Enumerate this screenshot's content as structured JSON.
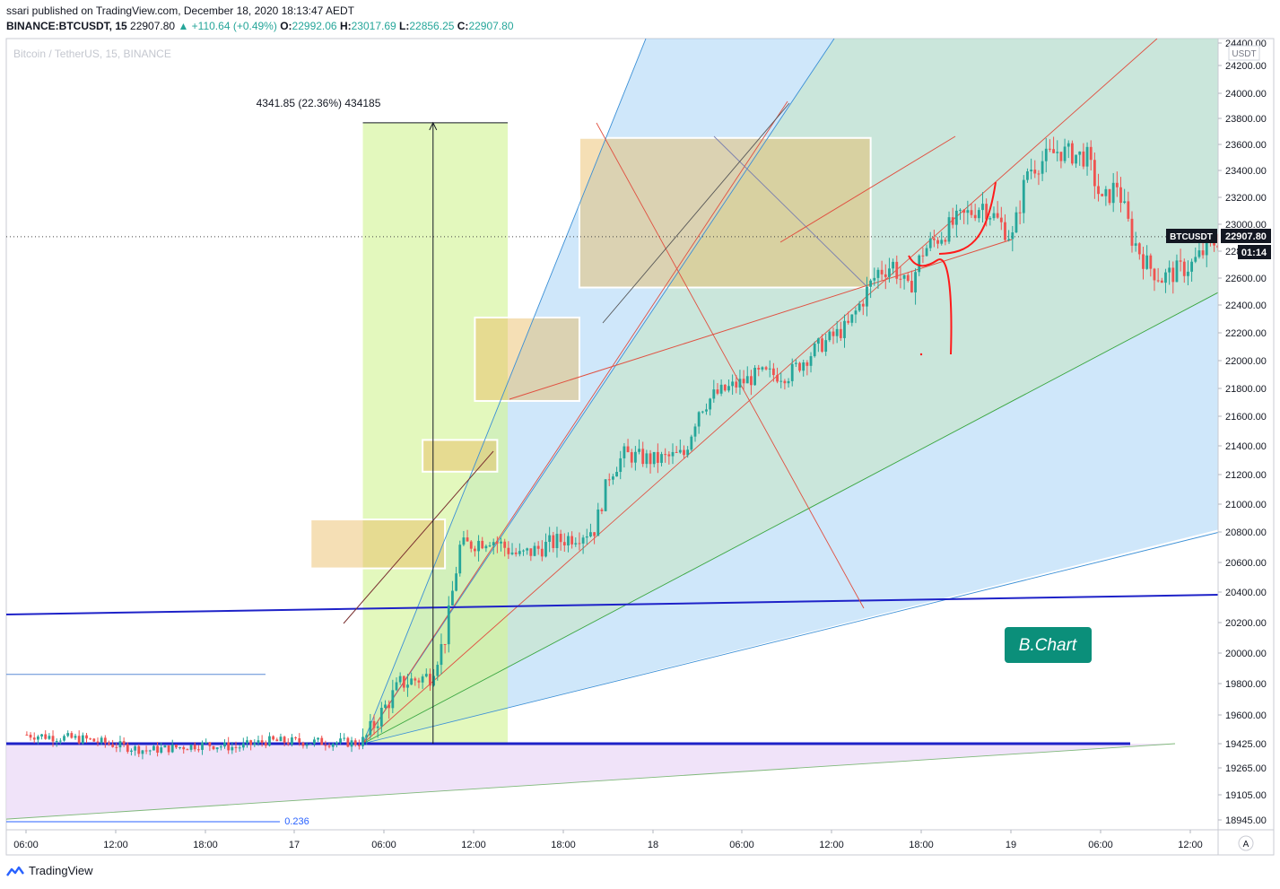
{
  "header": {
    "publish_line": "ssari published on TradingView.com, December 18, 2020 18:13:47 AEDT",
    "symbol": "BINANCE:BTCUSDT, 15",
    "last": "22907.80",
    "arrow": "▲",
    "change": "+110.64 (+0.49%)",
    "o_label": "O:",
    "o": "22992.06",
    "h_label": "H:",
    "h": "23017.69",
    "l_label": "L:",
    "l": "22856.25",
    "c_label": "C:",
    "c": "22907.80"
  },
  "watermark": "Bitcoin / TetherUS, 15, BINANCE",
  "currency": "USDT",
  "price_tag": {
    "symbol": "BTCUSDT",
    "price": "22907.80",
    "countdown": "01:14"
  },
  "measure_label": "4341.85 (22.36%) 434185",
  "fib_label": "0.236",
  "bchart_label": "B.Chart",
  "scale_button": "A",
  "footer_brand": "TradingView",
  "colors": {
    "up": "#26a69a",
    "down": "#ef5350",
    "blue_line": "#1e22c8",
    "box_fill": "#e8b85a",
    "green_zone": "#d4f59a",
    "blue_fan": "#9fcff5",
    "green_fan": "#c6e6c6",
    "purple_fan": "#ecdcf7",
    "bchart_bg": "#0b8f7a"
  },
  "chart_data": {
    "type": "candlestick",
    "symbol": "BTCUSDT",
    "interval": "15",
    "last_price": 22907.8,
    "y_ticks": [
      24400,
      24200,
      24000,
      23800,
      23600,
      23400,
      23200,
      23000,
      22800,
      22600,
      22400,
      22200,
      22000,
      21800,
      21600,
      21400,
      21200,
      21000,
      20800,
      20600,
      20400,
      20200,
      20000,
      19800,
      19600,
      19425,
      19265,
      19105,
      18945
    ],
    "y_tick_labels": [
      "24400.00",
      "24200.00",
      "24000.00",
      "23800.00",
      "23600.00",
      "23400.00",
      "23200.00",
      "23000.00",
      "22800.00",
      "22600.00",
      "22400.00",
      "22200.00",
      "22000.00",
      "21800.00",
      "21600.00",
      "21400.00",
      "21200.00",
      "21000.00",
      "20800.00",
      "20600.00",
      "20400.00",
      "20200.00",
      "20000.00",
      "19800.00",
      "19600.00",
      "19425.00",
      "19265.00",
      "19105.00",
      "18945.00"
    ],
    "x_tick_labels": [
      "06:00",
      "12:00",
      "18:00",
      "17",
      "06:00",
      "12:00",
      "18:00",
      "18",
      "06:00",
      "12:00",
      "18:00",
      "19",
      "06:00",
      "12:00"
    ],
    "ylim": [
      18900,
      24500
    ],
    "consolidation_boxes": [
      {
        "from": "17 01:00",
        "to": "17 10:00",
        "low": 20560,
        "high": 20890
      },
      {
        "from": "17 08:30",
        "to": "17 13:30",
        "low": 21220,
        "high": 21440
      },
      {
        "from": "17 12:00",
        "to": "17 19:00",
        "low": 21710,
        "high": 22310
      },
      {
        "from": "17 19:00",
        "to": "18 14:30",
        "low": 22530,
        "high": 23650
      }
    ],
    "measure": {
      "from_price": 19425,
      "to_price": 23766.85,
      "change": 4341.85,
      "percent": 22.36
    },
    "horizontal_levels": [
      19425,
      19860,
      18945
    ]
  }
}
